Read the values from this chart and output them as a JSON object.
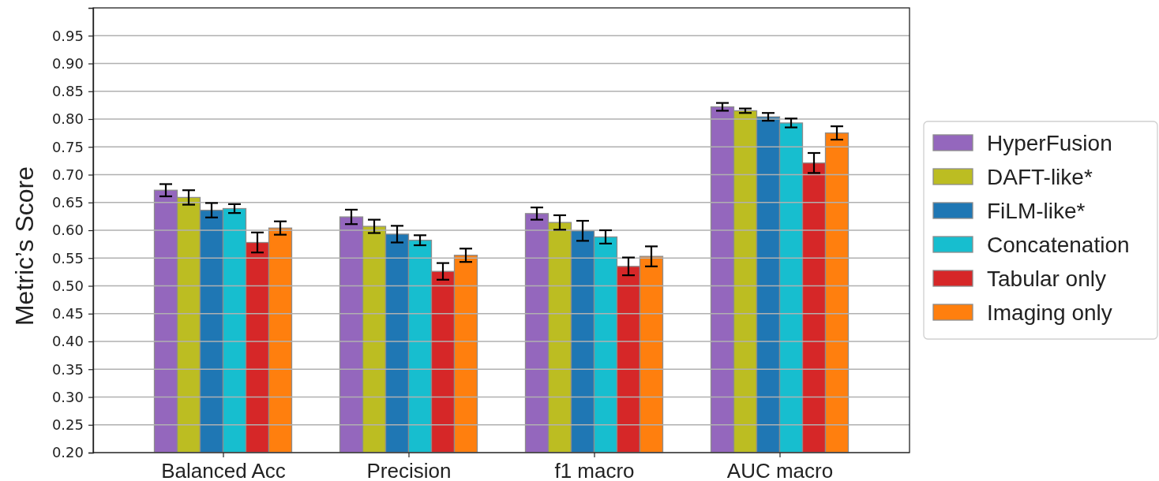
{
  "chart_data": {
    "type": "bar",
    "ylabel": "Metric’s Score",
    "categories": [
      "Balanced Acc",
      "Precision",
      "f1 macro",
      "AUC macro"
    ],
    "series": [
      {
        "name": "HyperFusion",
        "color": "#9467bd",
        "values": [
          0.672,
          0.624,
          0.63,
          0.822
        ],
        "errors": [
          0.011,
          0.013,
          0.011,
          0.007
        ]
      },
      {
        "name": "DAFT-like*",
        "color": "#bcbd22",
        "values": [
          0.659,
          0.607,
          0.614,
          0.815
        ],
        "errors": [
          0.013,
          0.012,
          0.013,
          0.004
        ]
      },
      {
        "name": "FiLM-like*",
        "color": "#1f77b4",
        "values": [
          0.636,
          0.593,
          0.599,
          0.804
        ],
        "errors": [
          0.013,
          0.015,
          0.018,
          0.007
        ]
      },
      {
        "name": "Concatenation",
        "color": "#17becf",
        "values": [
          0.639,
          0.582,
          0.588,
          0.793
        ],
        "errors": [
          0.008,
          0.009,
          0.012,
          0.008
        ]
      },
      {
        "name": "Tabular only",
        "color": "#d62728",
        "values": [
          0.578,
          0.526,
          0.535,
          0.721
        ],
        "errors": [
          0.018,
          0.015,
          0.016,
          0.018
        ]
      },
      {
        "name": "Imaging only",
        "color": "#ff7f0e",
        "values": [
          0.604,
          0.555,
          0.553,
          0.775
        ],
        "errors": [
          0.012,
          0.012,
          0.018,
          0.012
        ]
      }
    ],
    "ylim": [
      0.2,
      1.0
    ],
    "yticks": [
      {
        "value": 0.2,
        "label": "0.20"
      },
      0.25,
      {
        "value": 0.3,
        "label": "0.30"
      },
      0.35,
      {
        "value": 0.4,
        "label": "0.40"
      },
      0.45,
      {
        "value": 0.5,
        "label": "0.50"
      },
      0.55,
      {
        "value": 0.6,
        "label": "0.60"
      },
      0.65,
      {
        "value": 0.7,
        "label": "0.70"
      },
      0.75,
      {
        "value": 0.8,
        "label": "0.80"
      },
      0.85,
      {
        "value": 0.9,
        "label": "0.90"
      },
      0.95
    ],
    "grid": "y",
    "legend": "right"
  }
}
